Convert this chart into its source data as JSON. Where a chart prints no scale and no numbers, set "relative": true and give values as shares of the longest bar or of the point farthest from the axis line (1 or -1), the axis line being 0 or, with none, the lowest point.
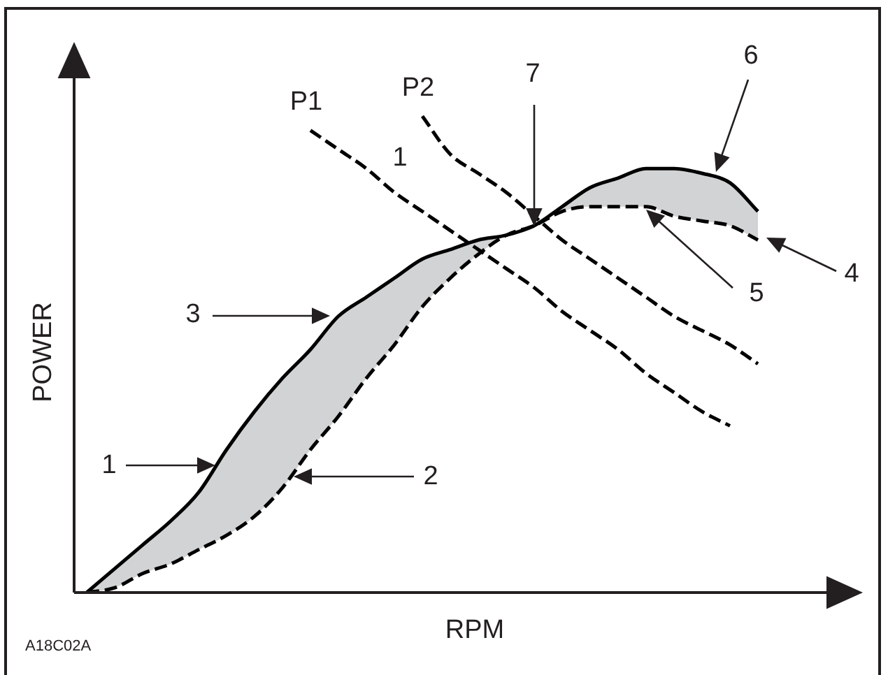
{
  "chart_data": {
    "type": "line",
    "relative": true,
    "xlabel": "RPM",
    "ylabel": "POWER",
    "legend": false,
    "categories": [
      null,
      null,
      null,
      null,
      null,
      null,
      null,
      null,
      null,
      null,
      null,
      null,
      null,
      null,
      null,
      null,
      null,
      null,
      null,
      null,
      null,
      null,
      null,
      null,
      null,
      null,
      null
    ],
    "series": [
      {
        "color": "#000000",
        "line_style": "solid",
        "values": [
          0,
          0.05,
          0.1,
          0.15,
          0.21,
          0.3,
          0.38,
          0.45,
          0.51,
          0.58,
          0.62,
          0.66,
          0.7,
          0.72,
          0.74,
          0.75,
          0.77,
          0.81,
          0.85,
          0.87,
          0.89,
          0.89,
          0.88,
          0.86,
          0.8,
          null,
          null
        ],
        "lower": [
          0,
          0.01,
          0.04,
          0.06,
          0.09,
          0.12,
          0.16,
          0.22,
          0.3,
          0.37,
          0.45,
          0.52,
          0.6,
          0.66,
          0.71,
          0.75,
          0.77,
          0.8,
          0.81,
          0.81,
          0.81,
          0.79,
          0.78,
          0.77,
          0.74,
          null,
          null
        ],
        "upper": [
          0,
          0.05,
          0.1,
          0.15,
          0.21,
          0.3,
          0.38,
          0.45,
          0.51,
          0.58,
          0.62,
          0.66,
          0.7,
          0.72,
          0.74,
          0.75,
          0.77,
          0.81,
          0.85,
          0.87,
          0.89,
          0.89,
          0.88,
          0.86,
          0.8,
          null,
          null
        ]
      },
      {
        "color": "#000000",
        "line_style": "dashed",
        "values": [
          0,
          0.01,
          0.04,
          0.06,
          0.09,
          0.12,
          0.16,
          0.22,
          0.3,
          0.37,
          0.45,
          0.52,
          0.6,
          0.66,
          0.71,
          0.75,
          0.77,
          0.8,
          0.81,
          0.81,
          0.81,
          0.79,
          0.78,
          0.77,
          0.74,
          null,
          null
        ]
      },
      {
        "name": "P1",
        "color": "#000000",
        "line_style": "dashed",
        "values": [
          null,
          null,
          null,
          null,
          null,
          null,
          null,
          null,
          0.97,
          0.93,
          0.89,
          0.84,
          0.8,
          0.76,
          0.72,
          0.68,
          0.64,
          0.59,
          0.55,
          0.51,
          0.46,
          0.42,
          0.38,
          0.35,
          null,
          null,
          null
        ]
      },
      {
        "name": "P2",
        "color": "#000000",
        "line_style": "dashed",
        "values": [
          null,
          null,
          null,
          null,
          null,
          null,
          null,
          null,
          null,
          null,
          null,
          null,
          1,
          0.92,
          0.88,
          0.84,
          0.79,
          0.74,
          0.7,
          0.66,
          0.62,
          0.58,
          0.55,
          0.52,
          0.48,
          null,
          null
        ]
      }
    ],
    "annotations": [
      "1",
      "2",
      "3",
      "4",
      "5",
      "6",
      "7",
      "1",
      "A18C02A"
    ]
  }
}
